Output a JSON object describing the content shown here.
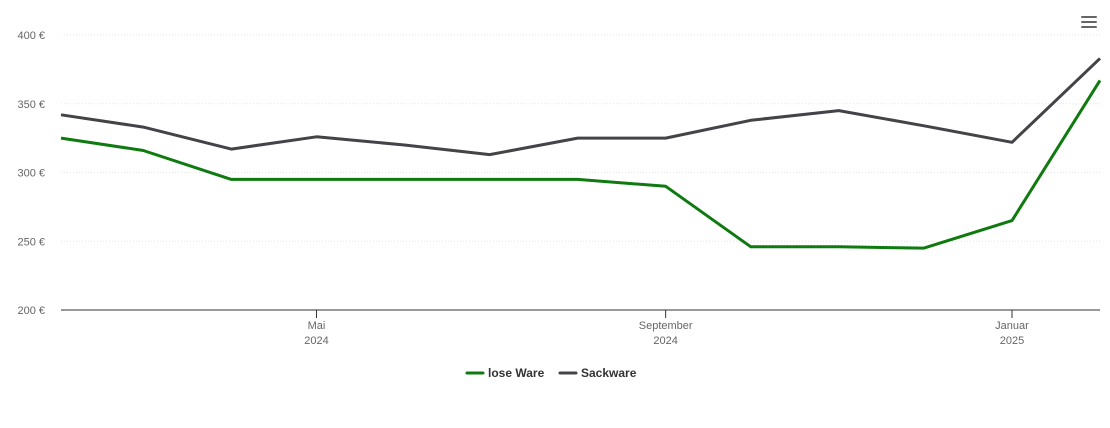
{
  "chart_data": {
    "type": "line",
    "x": [
      "2024-02",
      "2024-03",
      "2024-04",
      "2024-05",
      "2024-06",
      "2024-07",
      "2024-08",
      "2024-09",
      "2024-10",
      "2024-11",
      "2024-12",
      "2025-01",
      "2025-02"
    ],
    "series": [
      {
        "name": "lose Ware",
        "color": "#0f7a0f",
        "values": [
          325,
          316,
          295,
          295,
          295,
          295,
          295,
          290,
          246,
          246,
          245,
          265,
          367
        ]
      },
      {
        "name": "Sackware",
        "color": "#434348",
        "values": [
          342,
          333,
          317,
          326,
          320,
          313,
          325,
          325,
          338,
          345,
          334,
          322,
          383
        ]
      }
    ],
    "xlim": [
      "2024-02",
      "2025-02"
    ],
    "xticks": [
      {
        "value": "2024-05",
        "label": [
          "Mai",
          "2024"
        ]
      },
      {
        "value": "2024-09",
        "label": [
          "September",
          "2024"
        ]
      },
      {
        "value": "2025-01",
        "label": [
          "Januar",
          "2025"
        ]
      }
    ],
    "ylim": [
      200,
      400
    ],
    "yticks": [
      {
        "value": 200,
        "label": "200 €"
      },
      {
        "value": 250,
        "label": "250 €"
      },
      {
        "value": 300,
        "label": "300 €"
      },
      {
        "value": 350,
        "label": "350 €"
      },
      {
        "value": 400,
        "label": "400 €"
      }
    ],
    "grid": true,
    "legend": "bottom"
  }
}
